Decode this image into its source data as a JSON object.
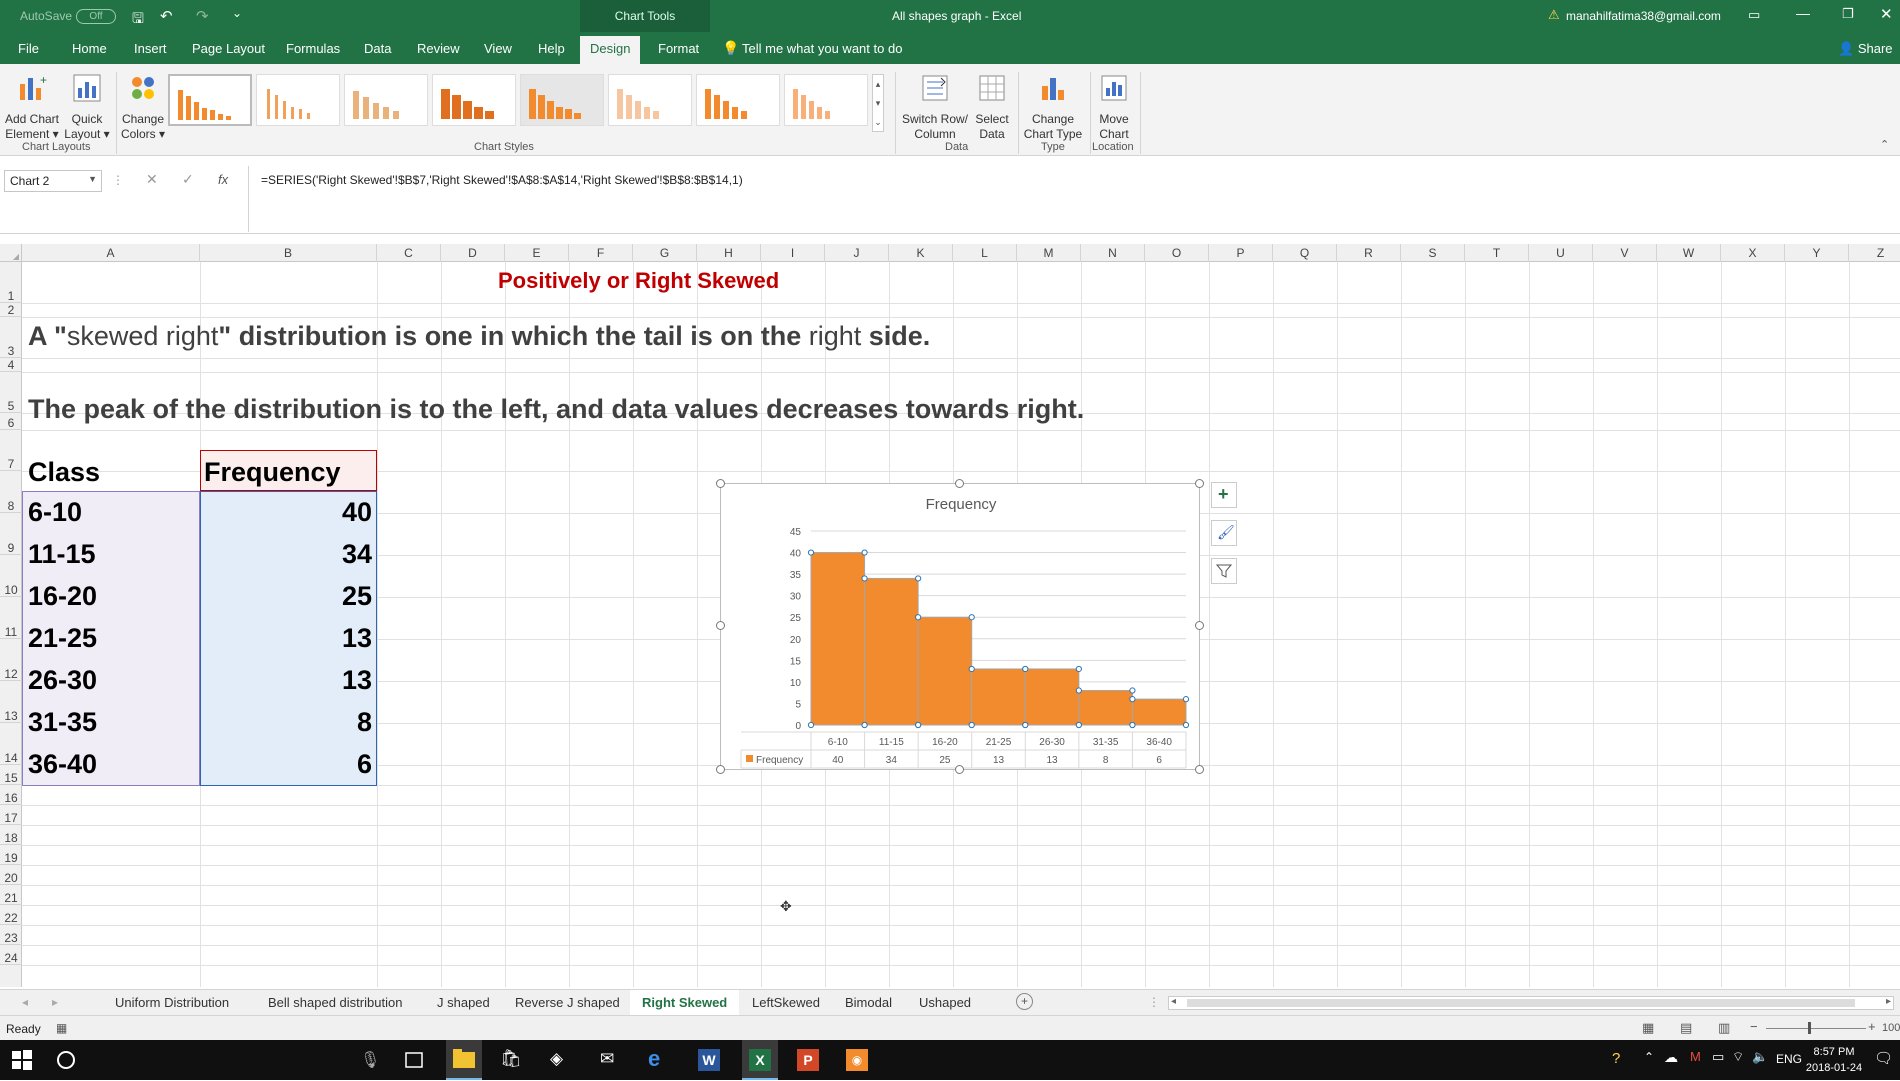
{
  "titlebar": {
    "autosave_label": "AutoSave",
    "autosave_state": "Off",
    "chart_tools": "Chart Tools",
    "title": "All shapes graph  -  Excel",
    "user": "manahilfatima38@gmail.com"
  },
  "tabs": [
    {
      "label": "File"
    },
    {
      "label": "Home"
    },
    {
      "label": "Insert"
    },
    {
      "label": "Page Layout"
    },
    {
      "label": "Formulas"
    },
    {
      "label": "Data"
    },
    {
      "label": "Review"
    },
    {
      "label": "View"
    },
    {
      "label": "Help"
    },
    {
      "label": "Design"
    },
    {
      "label": "Format"
    }
  ],
  "tell_me": "Tell me what you want to do",
  "share": "Share",
  "ribbon": {
    "add_chart_element": [
      "Add Chart",
      "Element ▾"
    ],
    "quick_layout": [
      "Quick",
      "Layout ▾"
    ],
    "change_colors": [
      "Change",
      "Colors ▾"
    ],
    "switch_row_col": [
      "Switch Row/",
      "Column"
    ],
    "select_data": [
      "Select",
      "Data"
    ],
    "change_chart_type": [
      "Change",
      "Chart Type"
    ],
    "move_chart": [
      "Move",
      "Chart"
    ],
    "groups": {
      "chart_layouts": "Chart Layouts",
      "chart_styles": "Chart Styles",
      "data": "Data",
      "type": "Type",
      "location": "Location"
    }
  },
  "formula_bar": {
    "name_box": "Chart 2",
    "fx": "fx",
    "formula": "=SERIES('Right Skewed'!$B$7,'Right Skewed'!$A$8:$A$14,'Right Skewed'!$B$8:$B$14,1)"
  },
  "columns": [
    "A",
    "B",
    "C",
    "D",
    "E",
    "F",
    "G",
    "H",
    "I",
    "J",
    "K",
    "L",
    "M",
    "N",
    "O",
    "P",
    "Q",
    "R",
    "S",
    "T",
    "U",
    "V",
    "W",
    "X",
    "Y",
    "Z"
  ],
  "rows": [
    "1",
    "2",
    "3",
    "4",
    "5",
    "6",
    "7",
    "8",
    "9",
    "10",
    "11",
    "12",
    "13",
    "14",
    "15",
    "16",
    "17",
    "18",
    "19",
    "20",
    "21",
    "22",
    "23",
    "24"
  ],
  "sheet": {
    "title": "Positively or Right Skewed",
    "line3_parts": [
      "A \"",
      "skewed right",
      "\" distribution is one in which the tail is on the ",
      "right",
      " side."
    ],
    "line5": "The peak of the distribution is to the left, and data values decreases towards right.",
    "table_header": [
      "Class",
      "Frequency"
    ],
    "table_rows": [
      {
        "cls": "6-10",
        "freq": "40"
      },
      {
        "cls": "11-15",
        "freq": "34"
      },
      {
        "cls": "16-20",
        "freq": "25"
      },
      {
        "cls": "21-25",
        "freq": "13"
      },
      {
        "cls": "26-30",
        "freq": "13"
      },
      {
        "cls": "31-35",
        "freq": "8"
      },
      {
        "cls": "36-40",
        "freq": "6"
      }
    ]
  },
  "chart_data": {
    "type": "bar",
    "title": "Frequency",
    "categories": [
      "6-10",
      "11-15",
      "16-20",
      "21-25",
      "26-30",
      "31-35",
      "36-40"
    ],
    "series": [
      {
        "name": "Frequency",
        "values": [
          40,
          34,
          25,
          13,
          13,
          8,
          6
        ],
        "color": "#f28a2e"
      }
    ],
    "ylim": [
      0,
      45
    ],
    "yticks": [
      "0",
      "5",
      "10",
      "15",
      "20",
      "25",
      "30",
      "35",
      "40",
      "45"
    ],
    "legend_position": "data-table-bottom",
    "grid": true
  },
  "sheet_tabs": [
    {
      "label": "Uniform Distribution"
    },
    {
      "label": "Bell shaped distribution"
    },
    {
      "label": "J shaped"
    },
    {
      "label": "Reverse J shaped"
    },
    {
      "label": "Right Skewed"
    },
    {
      "label": "LeftSkewed"
    },
    {
      "label": "Bimodal"
    },
    {
      "label": "Ushaped"
    }
  ],
  "status": {
    "ready": "Ready",
    "zoom": "100"
  },
  "taskbar": {
    "time": "8:57 PM",
    "date": "2018-01-24",
    "lang": "ENG"
  },
  "colors": {
    "excel_green": "#217346",
    "bar": "#f28a2e",
    "title_red": "#c00000"
  }
}
